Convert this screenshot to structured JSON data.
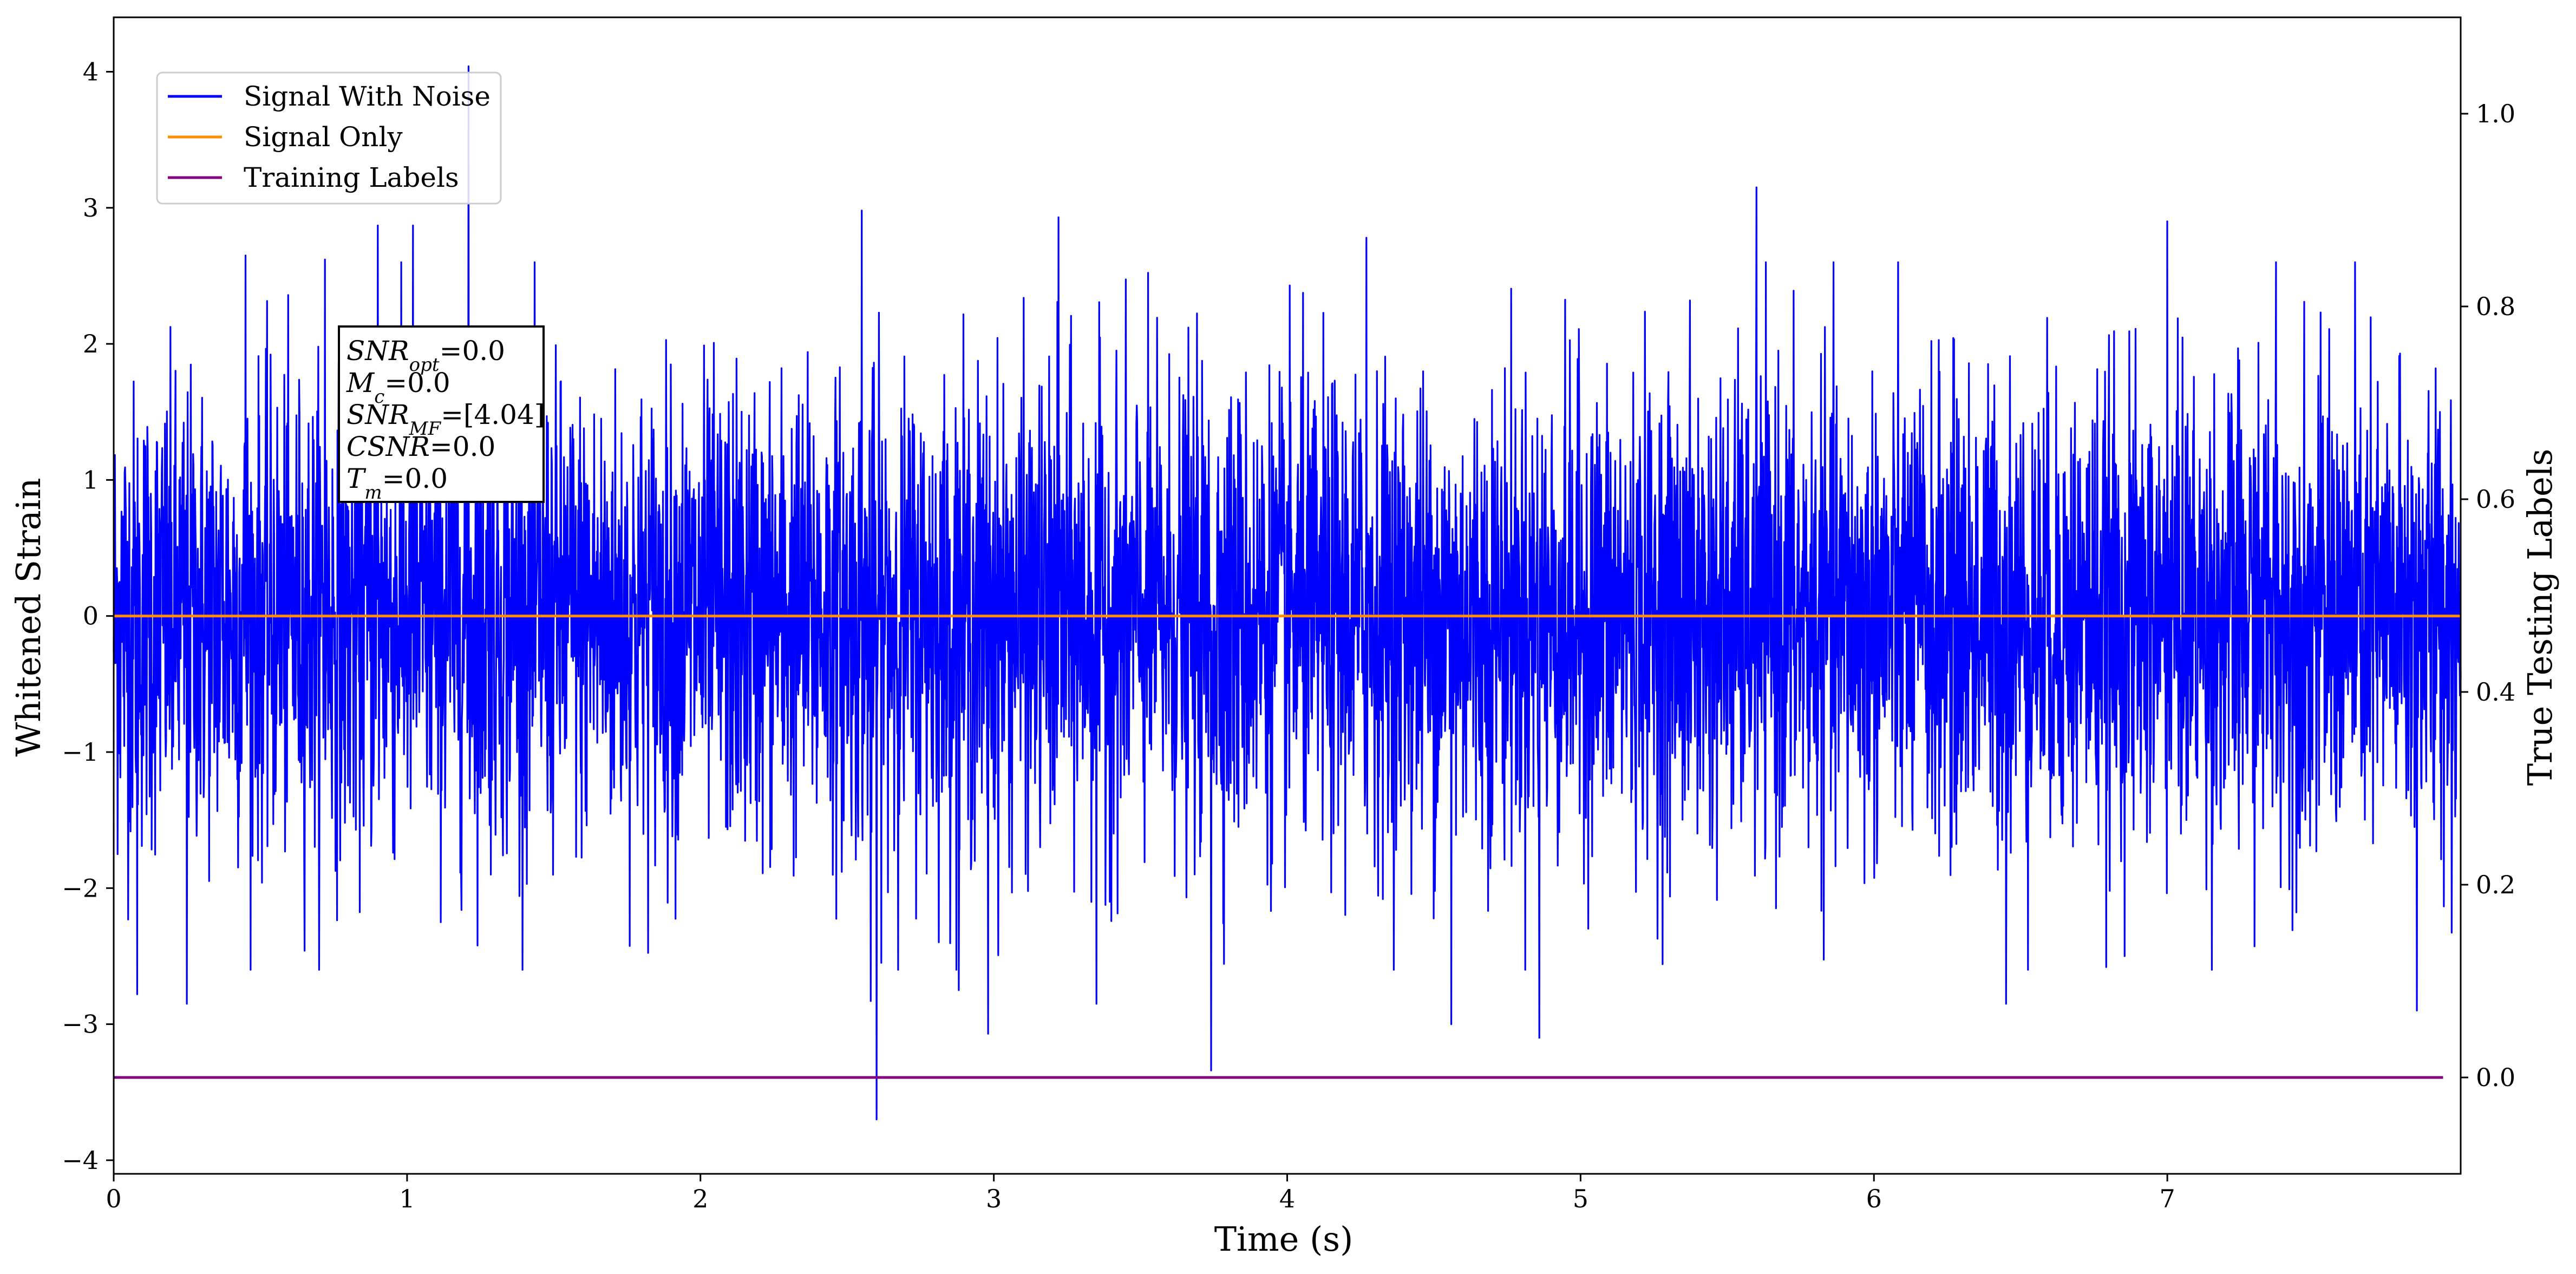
{
  "chart_data": {
    "type": "line",
    "xlabel": "Time (s)",
    "ylabel": "Whitened Strain",
    "y2label": "True Testing Labels",
    "xlim": [
      0,
      8.0
    ],
    "ylim": [
      -4.1,
      4.4
    ],
    "y2lim": [
      -0.1,
      1.1
    ],
    "grid": false,
    "legend_placement": "top-left",
    "x_ticks": [
      "0",
      "1",
      "2",
      "3",
      "4",
      "5",
      "6",
      "7"
    ],
    "y_ticks": [
      "−4",
      "−3",
      "−2",
      "−1",
      "0",
      "1",
      "2",
      "3",
      "4"
    ],
    "y2_ticks": [
      "0.0",
      "0.2",
      "0.4",
      "0.6",
      "0.8",
      "1.0"
    ],
    "series": [
      {
        "name": "Signal With Noise",
        "color": "#0000ff",
        "axis": "left",
        "description_values": {
          "mean": 0.0,
          "std": 0.85,
          "max": 4.04,
          "max_at_s": 1.21,
          "min": -3.7,
          "min_at_s": 2.6,
          "notable_peaks": [
            [
              0.45,
              2.65
            ],
            [
              0.72,
              2.62
            ],
            [
              0.9,
              2.87
            ],
            [
              1.02,
              2.87
            ],
            [
              1.21,
              4.04
            ],
            [
              2.55,
              2.98
            ],
            [
              3.22,
              2.93
            ],
            [
              4.27,
              2.78
            ],
            [
              5.6,
              3.15
            ],
            [
              7.0,
              2.9
            ],
            [
              7.37,
              2.6
            ]
          ],
          "notable_troughs": [
            [
              0.08,
              -2.78
            ],
            [
              0.25,
              -2.85
            ],
            [
              2.58,
              -2.83
            ],
            [
              2.6,
              -3.7
            ],
            [
              2.88,
              -2.75
            ],
            [
              2.98,
              -3.07
            ],
            [
              3.35,
              -2.85
            ],
            [
              3.74,
              -3.34
            ],
            [
              4.56,
              -3.0
            ],
            [
              4.86,
              -3.1
            ],
            [
              6.45,
              -2.85
            ],
            [
              7.85,
              -2.9
            ]
          ]
        }
      },
      {
        "name": "Signal Only",
        "color": "#ff8c00",
        "axis": "left",
        "x": [
          0,
          8.0
        ],
        "values": [
          0.0,
          0.0
        ]
      },
      {
        "name": "Training Labels",
        "color": "#800080",
        "axis": "right",
        "x": [
          0,
          7.94
        ],
        "values": [
          0.0,
          0.0
        ]
      }
    ],
    "legend": {
      "entries": [
        "Signal With Noise",
        "Signal Only",
        "Training Labels"
      ]
    },
    "annotation": {
      "lines": [
        {
          "main": "SNR",
          "sub": "opt",
          "value": "=0.0"
        },
        {
          "main": "M",
          "sub": "c",
          "value": "=0.0"
        },
        {
          "main": "SNR",
          "sub": "MF",
          "value": "=[4.04]"
        },
        {
          "main": "CSNR",
          "sub": "",
          "value": "=0.0"
        },
        {
          "main": "T",
          "sub": "m",
          "value": "=0.0"
        }
      ]
    }
  }
}
